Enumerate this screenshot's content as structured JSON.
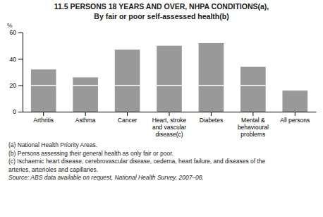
{
  "chart_data": {
    "type": "bar",
    "stacked": true,
    "grid": false,
    "title": "11.5   PERSONS 18 YEARS AND OVER, NHPA CONDITIONS(a),",
    "subtitle": "By fair or poor self-assessed health(b)",
    "categories": [
      "Arthritis",
      "Asthma",
      "Cancer",
      "Heart, stroke\nand vascular\ndisease(c)",
      "Diabetes",
      "Mental &\nbehavioural\nproblems",
      "All persons"
    ],
    "series": [
      {
        "color": "#999999",
        "values": [
          20,
          20,
          20,
          20,
          20,
          20,
          0
        ]
      },
      {
        "color": "#999999",
        "values": [
          12,
          6,
          27,
          30,
          32,
          14,
          16
        ]
      }
    ],
    "ylabel": "%",
    "ylim": [
      0,
      60
    ],
    "yticks": [
      0,
      20,
      40,
      60
    ],
    "annotations": [
      "(a) National Health Priority Areas.",
      "(b) Persons assessing their general health as only fair or poor.",
      "(c) Ischaemic heart disease, cerebrovascular disease, oedema, heart failure, and diseases of the",
      "arteries, arterioles and capillaries."
    ],
    "source": "Source: ABS data available on request, National Health Survey, 2007–08."
  }
}
